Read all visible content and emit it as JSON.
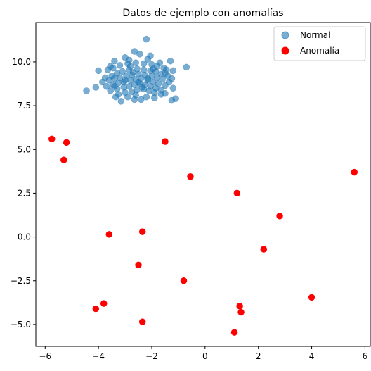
{
  "chart_data": {
    "type": "scatter",
    "title": "Datos de ejemplo con anomalías",
    "xlabel": "",
    "ylabel": "",
    "xlim": [
      -6.35,
      6.2
    ],
    "ylim": [
      -6.25,
      12.25
    ],
    "xticks": [
      -6,
      -4,
      -2,
      0,
      2,
      4,
      6
    ],
    "xtick_labels": [
      "−6",
      "−4",
      "−2",
      "0",
      "2",
      "4",
      "6"
    ],
    "yticks": [
      -5.0,
      -2.5,
      0.0,
      2.5,
      5.0,
      7.5,
      10.0
    ],
    "ytick_labels": [
      "−5.0",
      "−2.5",
      "0.0",
      "2.5",
      "5.0",
      "7.5",
      "10.0"
    ],
    "grid": false,
    "legend_position": "top-right",
    "series": [
      {
        "name": "Normal",
        "color": "#1f77b4",
        "opacity": 0.6,
        "points": [
          [
            -2.2,
            11.3
          ],
          [
            -2.65,
            10.6
          ],
          [
            -2.45,
            10.45
          ],
          [
            -3.0,
            10.25
          ],
          [
            -2.05,
            10.35
          ],
          [
            -1.3,
            10.05
          ],
          [
            -3.4,
            10.05
          ],
          [
            -2.85,
            10.1
          ],
          [
            -2.15,
            10.15
          ],
          [
            -0.7,
            9.7
          ],
          [
            -4.0,
            9.5
          ],
          [
            -3.65,
            9.55
          ],
          [
            -3.45,
            9.65
          ],
          [
            -3.2,
            9.8
          ],
          [
            -2.9,
            9.9
          ],
          [
            -2.6,
            9.95
          ],
          [
            -2.3,
            9.9
          ],
          [
            -2.0,
            9.85
          ],
          [
            -1.8,
            9.75
          ],
          [
            -1.55,
            9.65
          ],
          [
            -1.2,
            9.5
          ],
          [
            -1.45,
            9.55
          ],
          [
            -3.75,
            9.1
          ],
          [
            -3.5,
            9.2
          ],
          [
            -3.3,
            9.35
          ],
          [
            -3.1,
            9.45
          ],
          [
            -2.85,
            9.55
          ],
          [
            -2.55,
            9.6
          ],
          [
            -2.3,
            9.55
          ],
          [
            -2.05,
            9.5
          ],
          [
            -1.85,
            9.45
          ],
          [
            -1.65,
            9.3
          ],
          [
            -1.4,
            9.2
          ],
          [
            -1.25,
            9.05
          ],
          [
            -3.85,
            8.85
          ],
          [
            -3.6,
            8.95
          ],
          [
            -3.4,
            9.05
          ],
          [
            -3.2,
            9.1
          ],
          [
            -2.95,
            9.2
          ],
          [
            -2.75,
            9.25
          ],
          [
            -2.5,
            9.3
          ],
          [
            -2.25,
            9.25
          ],
          [
            -2.0,
            9.2
          ],
          [
            -1.8,
            9.1
          ],
          [
            -1.6,
            9.0
          ],
          [
            -3.7,
            8.6
          ],
          [
            -3.45,
            8.7
          ],
          [
            -3.25,
            8.8
          ],
          [
            -3.05,
            8.85
          ],
          [
            -2.8,
            8.95
          ],
          [
            -2.6,
            9.0
          ],
          [
            -2.4,
            9.05
          ],
          [
            -2.15,
            8.95
          ],
          [
            -1.95,
            8.85
          ],
          [
            -1.75,
            8.75
          ],
          [
            -1.5,
            8.65
          ],
          [
            -3.55,
            8.35
          ],
          [
            -3.3,
            8.45
          ],
          [
            -3.05,
            8.55
          ],
          [
            -2.85,
            8.6
          ],
          [
            -2.65,
            8.7
          ],
          [
            -2.45,
            8.75
          ],
          [
            -2.25,
            8.7
          ],
          [
            -2.05,
            8.6
          ],
          [
            -1.85,
            8.5
          ],
          [
            -1.65,
            8.4
          ],
          [
            -4.45,
            8.35
          ],
          [
            -4.1,
            8.55
          ],
          [
            -3.25,
            8.15
          ],
          [
            -3.0,
            8.25
          ],
          [
            -2.75,
            8.3
          ],
          [
            -2.55,
            8.4
          ],
          [
            -2.3,
            8.45
          ],
          [
            -2.1,
            8.35
          ],
          [
            -1.9,
            8.25
          ],
          [
            -1.65,
            8.15
          ],
          [
            -1.5,
            8.2
          ],
          [
            -1.2,
            8.5
          ],
          [
            -3.35,
            8.0
          ],
          [
            -2.9,
            8.0
          ],
          [
            -2.6,
            8.1
          ],
          [
            -2.4,
            7.85
          ],
          [
            -2.2,
            8.0
          ],
          [
            -1.9,
            7.95
          ],
          [
            -1.25,
            7.8
          ],
          [
            -1.1,
            7.9
          ],
          [
            -2.65,
            7.85
          ],
          [
            -3.15,
            7.75
          ],
          [
            -1.5,
            9.35
          ],
          [
            -2.7,
            9.4
          ],
          [
            -3.0,
            8.95
          ],
          [
            -2.35,
            8.55
          ],
          [
            -1.95,
            9.6
          ],
          [
            -2.5,
            8.85
          ],
          [
            -3.55,
            9.75
          ],
          [
            -1.35,
            8.85
          ],
          [
            -2.8,
            9.75
          ],
          [
            -2.15,
            9.05
          ],
          [
            -3.4,
            8.6
          ],
          [
            -1.7,
            9.95
          ]
        ]
      },
      {
        "name": "Anomalía",
        "color": "#ff0000",
        "opacity": 1,
        "points": [
          [
            -5.75,
            5.6
          ],
          [
            -5.2,
            5.4
          ],
          [
            -5.3,
            4.4
          ],
          [
            -1.5,
            5.45
          ],
          [
            -0.55,
            3.45
          ],
          [
            5.6,
            3.7
          ],
          [
            1.2,
            2.5
          ],
          [
            2.8,
            1.2
          ],
          [
            -3.6,
            0.15
          ],
          [
            -2.35,
            0.3
          ],
          [
            2.2,
            -0.7
          ],
          [
            -2.5,
            -1.6
          ],
          [
            -0.8,
            -2.5
          ],
          [
            -3.8,
            -3.8
          ],
          [
            -4.1,
            -4.1
          ],
          [
            4.0,
            -3.45
          ],
          [
            1.3,
            -3.95
          ],
          [
            1.35,
            -4.3
          ],
          [
            -2.35,
            -4.85
          ],
          [
            1.1,
            -5.45
          ]
        ]
      }
    ]
  }
}
